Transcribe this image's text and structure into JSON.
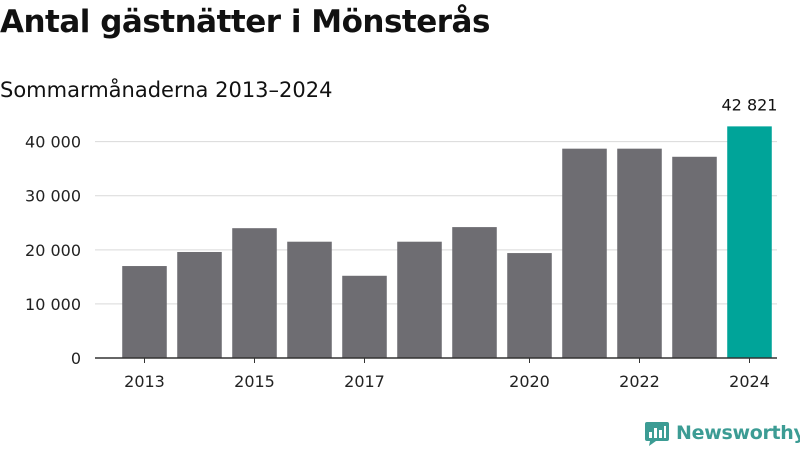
{
  "title": "Antal gästnätter i Mönsterås",
  "subtitle": "Sommarmånaderna 2013–2024",
  "brand": {
    "name": "Newsworthy",
    "color": "#3c9c94"
  },
  "colors": {
    "bar": "#6e6d72",
    "highlight": "#00a499",
    "grid": "#d9d9d9",
    "axis": "#333333"
  },
  "chart_data": {
    "type": "bar",
    "categories": [
      "2013",
      "2014",
      "2015",
      "2016",
      "2017",
      "2018",
      "2019",
      "2020",
      "2021",
      "2022",
      "2023",
      "2024"
    ],
    "values": [
      17000,
      19600,
      24000,
      21500,
      15200,
      21500,
      24200,
      19400,
      38700,
      38700,
      37200,
      42821
    ],
    "highlight_index": 11,
    "data_labels": [
      {
        "index": 11,
        "text": "42 821"
      }
    ],
    "x_tick_labels": [
      {
        "index": 0,
        "text": "2013"
      },
      {
        "index": 2,
        "text": "2015"
      },
      {
        "index": 4,
        "text": "2017"
      },
      {
        "index": 7,
        "text": "2020"
      },
      {
        "index": 9,
        "text": "2022"
      },
      {
        "index": 11,
        "text": "2024"
      }
    ],
    "y_ticks": [
      {
        "value": 0,
        "text": "0"
      },
      {
        "value": 10000,
        "text": "10 000"
      },
      {
        "value": 20000,
        "text": "20 000"
      },
      {
        "value": 30000,
        "text": "30 000"
      },
      {
        "value": 40000,
        "text": "40 000"
      }
    ],
    "ylim": [
      0,
      44000
    ],
    "grid": true,
    "legend": false
  }
}
